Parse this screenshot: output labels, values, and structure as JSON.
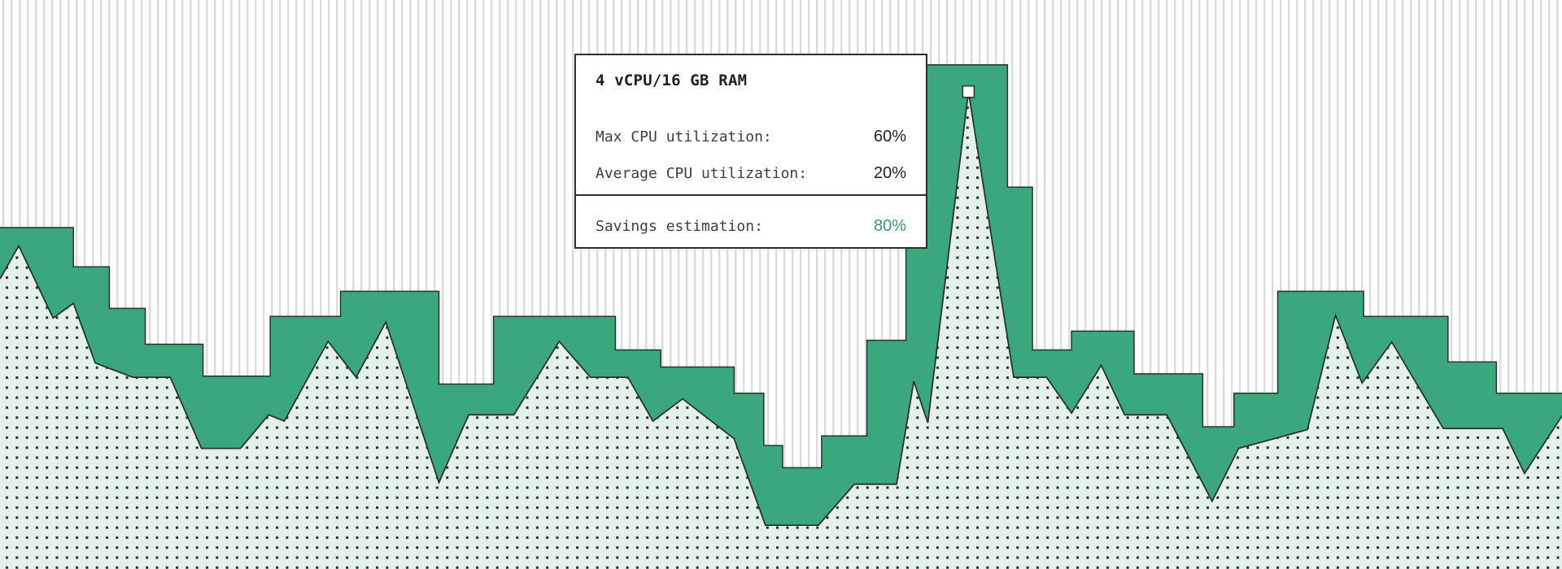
{
  "tooltip": {
    "title": "4 vCPU/16 GB RAM",
    "rows": [
      {
        "label": "Max CPU utilization:",
        "value": "60%"
      },
      {
        "label": "Average CPU utilization:",
        "value": "20%"
      }
    ],
    "summary": {
      "label": "Savings estimation:",
      "value": "80%"
    }
  },
  "chart_data": {
    "type": "area",
    "title": "",
    "xlabel": "",
    "ylabel": "",
    "xlim": [
      0,
      100
    ],
    "ylim": [
      0,
      100
    ],
    "grid": false,
    "legend": "none",
    "colors": {
      "allocated": "#3aa77c",
      "usage_fill": "#e4f1ea",
      "stroke": "#2a332f",
      "stripes": "#dcdcdc",
      "dots": "#2a2a2a",
      "accent_text": "#3a9a72"
    },
    "series": [
      {
        "kind": "step",
        "x": [
          0,
          4.7,
          7.0,
          9.3,
          13.0,
          17.3,
          21.8,
          28.1,
          31.6,
          39.4,
          42.3,
          47.0,
          48.9,
          50.1,
          52.6,
          55.5,
          58.0,
          64.5,
          66.1,
          68.6,
          72.6,
          77.0,
          79.0,
          81.8,
          87.3,
          92.7,
          95.8,
          100
        ],
        "values": [
          60,
          53.1,
          45.8,
          39.5,
          33.9,
          44.4,
          48.8,
          32.5,
          44.4,
          38.5,
          35.5,
          30.9,
          21.7,
          17.8,
          23.4,
          40.2,
          88.6,
          67.1,
          38.5,
          41.8,
          34.3,
          25.0,
          30.9,
          48.8,
          44.4,
          36.4,
          30.9,
          30.9
        ]
      },
      {
        "kind": "line",
        "x": [
          0,
          1.2,
          3.4,
          4.7,
          6.1,
          8.5,
          10.9,
          12.9,
          15.4,
          17.2,
          18.2,
          21.0,
          22.8,
          24.7,
          28.1,
          30.0,
          32.9,
          35.8,
          37.8,
          40.2,
          41.8,
          43.7,
          47.0,
          49.0,
          52.4,
          54.7,
          57.4,
          58.5,
          59.4,
          62.0,
          64.9,
          67.0,
          68.6,
          70.5,
          72.0,
          74.7,
          77.6,
          79.3,
          83.7,
          85.5,
          87.2,
          89.1,
          92.4,
          96.2,
          97.6,
          100
        ],
        "values": [
          51.0,
          56.8,
          44.1,
          46.7,
          36.2,
          33.7,
          33.7,
          21.2,
          21.2,
          27.1,
          26.0,
          40.0,
          33.7,
          43.4,
          15.2,
          27.1,
          27.1,
          40.0,
          33.7,
          33.7,
          26.0,
          29.9,
          22.9,
          7.7,
          7.7,
          14.9,
          14.9,
          33.0,
          25.7,
          83.9,
          33.7,
          33.7,
          27.4,
          35.8,
          27.1,
          27.1,
          11.9,
          21.2,
          24.5,
          44.6,
          32.7,
          39.9,
          24.7,
          24.7,
          16.8,
          26.9
        ]
      }
    ],
    "highlight": {
      "x": 62.0,
      "value": 83.9
    }
  }
}
